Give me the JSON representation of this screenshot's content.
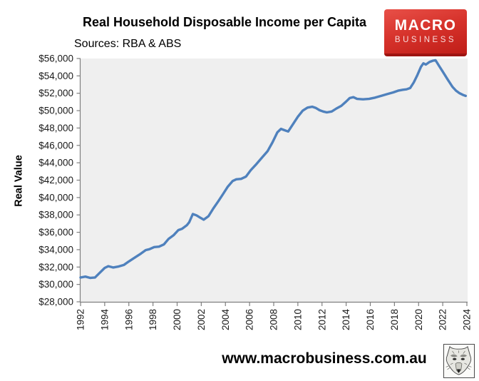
{
  "logo": {
    "line1": "MACRO",
    "line2": "BUSINESS"
  },
  "footer": {
    "url": "www.macrobusiness.com.au"
  },
  "colors": {
    "line": "#4F81BD",
    "plot_bg": "#EFEFEF",
    "axis": "#7F7F7F",
    "tick_label": "#1a1a1a",
    "logo_red_top": "#E85048",
    "logo_red_bottom": "#C01E18",
    "logo_red_strip": "#9E1512"
  },
  "chart_data": {
    "type": "line",
    "title": "Real Household Disposable Income per Capita",
    "subtitle": "Sources: RBA & ABS",
    "xlabel": "",
    "ylabel": "Real Value",
    "xlim": [
      1992,
      2024
    ],
    "ylim": [
      28000,
      56000
    ],
    "grid": false,
    "legend": "none",
    "x_ticks": [
      1992,
      1994,
      1996,
      1998,
      2000,
      2002,
      2004,
      2006,
      2008,
      2010,
      2012,
      2014,
      2016,
      2018,
      2020,
      2022,
      2024
    ],
    "x_tick_labels": [
      "1992",
      "1994",
      "1996",
      "1998",
      "2000",
      "2002",
      "2004",
      "2006",
      "2008",
      "2010",
      "2012",
      "2014",
      "2016",
      "2018",
      "2020",
      "2022",
      "2024"
    ],
    "y_ticks": [
      28000,
      30000,
      32000,
      34000,
      36000,
      38000,
      40000,
      42000,
      44000,
      46000,
      48000,
      50000,
      52000,
      54000,
      56000
    ],
    "y_tick_labels": [
      "$28,000",
      "$30,000",
      "$32,000",
      "$34,000",
      "$36,000",
      "$38,000",
      "$40,000",
      "$42,000",
      "$44,000",
      "$46,000",
      "$48,000",
      "$50,000",
      "$52,000",
      "$54,000",
      "$56,000"
    ],
    "series": [
      {
        "color": "#4F81BD",
        "points": [
          [
            1992.0,
            30800
          ],
          [
            1992.4,
            30900
          ],
          [
            1992.8,
            30750
          ],
          [
            1993.2,
            30800
          ],
          [
            1993.6,
            31350
          ],
          [
            1994.0,
            31900
          ],
          [
            1994.3,
            32100
          ],
          [
            1994.7,
            31950
          ],
          [
            1995.1,
            32050
          ],
          [
            1995.6,
            32250
          ],
          [
            1996.0,
            32650
          ],
          [
            1996.5,
            33100
          ],
          [
            1997.0,
            33550
          ],
          [
            1997.4,
            33950
          ],
          [
            1997.7,
            34050
          ],
          [
            1998.1,
            34300
          ],
          [
            1998.5,
            34350
          ],
          [
            1998.9,
            34600
          ],
          [
            1999.3,
            35250
          ],
          [
            1999.7,
            35650
          ],
          [
            2000.1,
            36250
          ],
          [
            2000.4,
            36400
          ],
          [
            2000.8,
            36800
          ],
          [
            2001.0,
            37150
          ],
          [
            2001.3,
            38100
          ],
          [
            2001.6,
            37950
          ],
          [
            2001.9,
            37700
          ],
          [
            2002.2,
            37450
          ],
          [
            2002.6,
            37850
          ],
          [
            2003.0,
            38750
          ],
          [
            2003.4,
            39550
          ],
          [
            2003.8,
            40400
          ],
          [
            2004.2,
            41250
          ],
          [
            2004.6,
            41900
          ],
          [
            2004.9,
            42100
          ],
          [
            2005.3,
            42150
          ],
          [
            2005.7,
            42400
          ],
          [
            2006.1,
            43150
          ],
          [
            2006.5,
            43750
          ],
          [
            2007.0,
            44550
          ],
          [
            2007.5,
            45350
          ],
          [
            2007.9,
            46350
          ],
          [
            2008.3,
            47500
          ],
          [
            2008.6,
            47900
          ],
          [
            2008.9,
            47750
          ],
          [
            2009.2,
            47600
          ],
          [
            2009.6,
            48450
          ],
          [
            2010.0,
            49300
          ],
          [
            2010.4,
            50000
          ],
          [
            2010.8,
            50350
          ],
          [
            2011.2,
            50450
          ],
          [
            2011.5,
            50300
          ],
          [
            2011.8,
            50050
          ],
          [
            2012.1,
            49900
          ],
          [
            2012.4,
            49800
          ],
          [
            2012.8,
            49900
          ],
          [
            2013.2,
            50250
          ],
          [
            2013.6,
            50550
          ],
          [
            2014.0,
            51050
          ],
          [
            2014.3,
            51450
          ],
          [
            2014.6,
            51550
          ],
          [
            2014.9,
            51350
          ],
          [
            2015.4,
            51300
          ],
          [
            2015.9,
            51350
          ],
          [
            2016.4,
            51500
          ],
          [
            2016.9,
            51700
          ],
          [
            2017.4,
            51900
          ],
          [
            2017.9,
            52100
          ],
          [
            2018.3,
            52300
          ],
          [
            2018.7,
            52400
          ],
          [
            2019.0,
            52450
          ],
          [
            2019.3,
            52600
          ],
          [
            2019.6,
            53250
          ],
          [
            2019.9,
            54100
          ],
          [
            2020.2,
            55050
          ],
          [
            2020.4,
            55450
          ],
          [
            2020.6,
            55300
          ],
          [
            2020.9,
            55600
          ],
          [
            2021.2,
            55750
          ],
          [
            2021.4,
            55800
          ],
          [
            2021.7,
            55150
          ],
          [
            2022.0,
            54500
          ],
          [
            2022.4,
            53600
          ],
          [
            2022.8,
            52750
          ],
          [
            2023.1,
            52300
          ],
          [
            2023.4,
            52000
          ],
          [
            2023.7,
            51800
          ],
          [
            2023.9,
            51700
          ]
        ]
      }
    ]
  }
}
